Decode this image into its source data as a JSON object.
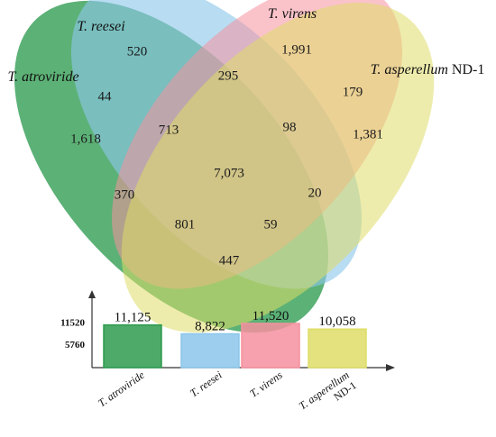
{
  "colors": {
    "atroviride": "#2e9b4f",
    "reesei": "#8cc6ea",
    "virens": "#f5919f",
    "asperellum": "#dedd68"
  },
  "venn": {
    "sets": [
      {
        "key": "atroviride",
        "italic": "T. atroviride",
        "plain": ""
      },
      {
        "key": "reesei",
        "italic": "T. reesei",
        "plain": ""
      },
      {
        "key": "virens",
        "italic": "T. virens",
        "plain": ""
      },
      {
        "key": "asperellum",
        "italic": "T. asperellum",
        "plain": " ND-1"
      }
    ],
    "regions": {
      "only_reesei": "520",
      "only_virens": "1,991",
      "only_atroviride": "1,618",
      "only_asperellum": "1,381",
      "atroviride_reesei": "44",
      "reesei_virens": "295",
      "virens_asperellum": "179",
      "atroviride_reesei_virens": "713",
      "reesei_virens_asperellum": "98",
      "all_four": "7,073",
      "atroviride_virens": "370",
      "reesei_asperellum": "20",
      "atroviride_virens_asperellum": "801",
      "atroviride_reesei_asperellum": "59",
      "atroviride_asperellum": "447"
    }
  },
  "chart_data": {
    "type": "bar",
    "categories": [
      "T. atroviride",
      "T. reesei",
      "T. virens",
      "T. asperellum ND-1"
    ],
    "values": [
      11125,
      8822,
      11520,
      10058
    ],
    "value_labels": [
      "11,125",
      "8,822",
      "11,520",
      "10,058"
    ],
    "yticks": [
      "11520",
      "5760"
    ],
    "ylim": [
      0,
      11520
    ],
    "xlabel": "",
    "ylabel": ""
  }
}
